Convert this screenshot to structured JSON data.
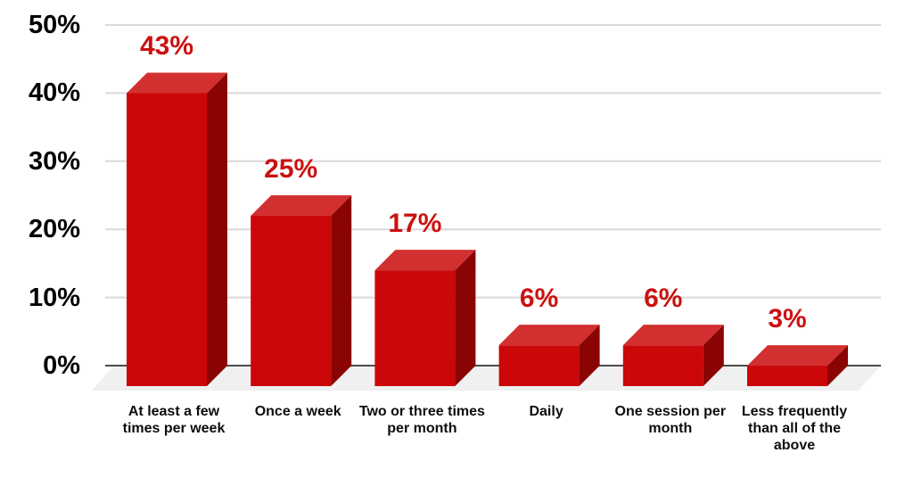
{
  "chart_data": {
    "type": "bar",
    "style": "3d-column",
    "title": "",
    "xlabel": "",
    "ylabel": "",
    "categories": [
      "At least a few times per week",
      "Once a week",
      "Two or three times per month",
      "Daily",
      "One session per month",
      "Less frequently than all of the above"
    ],
    "category_lines": [
      [
        "At least a few",
        "times per week"
      ],
      [
        "Once a week"
      ],
      [
        "Two or three times",
        "per month"
      ],
      [
        "Daily"
      ],
      [
        "One session per",
        "month"
      ],
      [
        "Less frequently",
        "than all of the",
        "above"
      ]
    ],
    "values": [
      43,
      25,
      17,
      6,
      6,
      3
    ],
    "data_labels": [
      "43%",
      "25%",
      "17%",
      "6%",
      "6%",
      "3%"
    ],
    "unit": "%",
    "y_axis": {
      "min": 0,
      "max": 50,
      "ticks": [
        0,
        10,
        20,
        30,
        40,
        50
      ],
      "tick_labels": [
        "0%",
        "10%",
        "20%",
        "30%",
        "40%",
        "50%"
      ]
    },
    "grid": true,
    "legend": "none",
    "colors": {
      "bar_front": "#CB0709",
      "bar_top": "#D23030",
      "bar_side": "#8B0404",
      "data_label": "#CC1111",
      "axis_text": "#000000",
      "category_text": "#0D0D0D",
      "gridline": "#D9D9D9",
      "baseline": "#4D4D4D",
      "floor": "#F0F0F0",
      "background": "#FFFFFF"
    }
  }
}
